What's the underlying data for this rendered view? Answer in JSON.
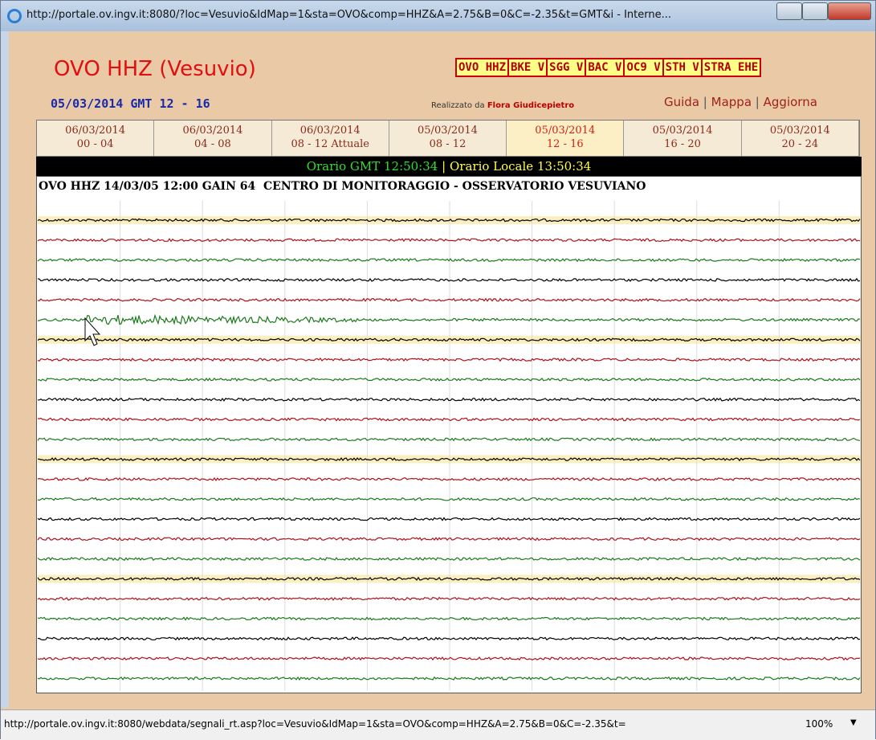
{
  "window": {
    "title": "http://portale.ov.ingv.it:8080/?loc=Vesuvio&IdMap=1&sta=OVO&comp=HHZ&A=2.75&B=0&C=-2.35&t=GMT&i - Interne..."
  },
  "header": {
    "title": "OVO HHZ (Vesuvio)",
    "stations": [
      "OVO HHZ",
      "BKE V",
      "SGG V",
      "BAC V",
      "OC9 V",
      "STH V",
      "STRA EHE"
    ],
    "subtitle": "05/03/2014 GMT 12 - 16",
    "credit_prefix": "Realizzato da",
    "credit_name": "Flora Giudicepietro",
    "links": [
      "Guida",
      "Mappa",
      "Aggiorna"
    ],
    "separator": "|"
  },
  "tabs": [
    {
      "date": "06/03/2014",
      "range": "00 - 04"
    },
    {
      "date": "06/03/2014",
      "range": "04 - 08"
    },
    {
      "date": "06/03/2014",
      "range": "08 - 12 Attuale"
    },
    {
      "date": "05/03/2014",
      "range": "08 - 12"
    },
    {
      "date": "05/03/2014",
      "range": "12 - 16"
    },
    {
      "date": "05/03/2014",
      "range": "16 - 20"
    },
    {
      "date": "05/03/2014",
      "range": "20 - 24"
    }
  ],
  "time_bar": {
    "gmt": "Orario GMT 12:50:34",
    "separator": "|",
    "local": "Orario Locale 13:50:34"
  },
  "plot_header": "OVO HHZ 14/03/05 12:00 GAIN 64  CENTRO DI MONITORAGGIO - OSSERVATORIO VESUVIANO",
  "status_bar": {
    "url": "http://portale.ov.ingv.it:8080/webdata/segnali_rt.asp?loc=Vesuvio&IdMap=1&sta=OVO&comp=HHZ&A=2.75&B=0&C=-2.35&t=",
    "zoom": "100%"
  }
}
